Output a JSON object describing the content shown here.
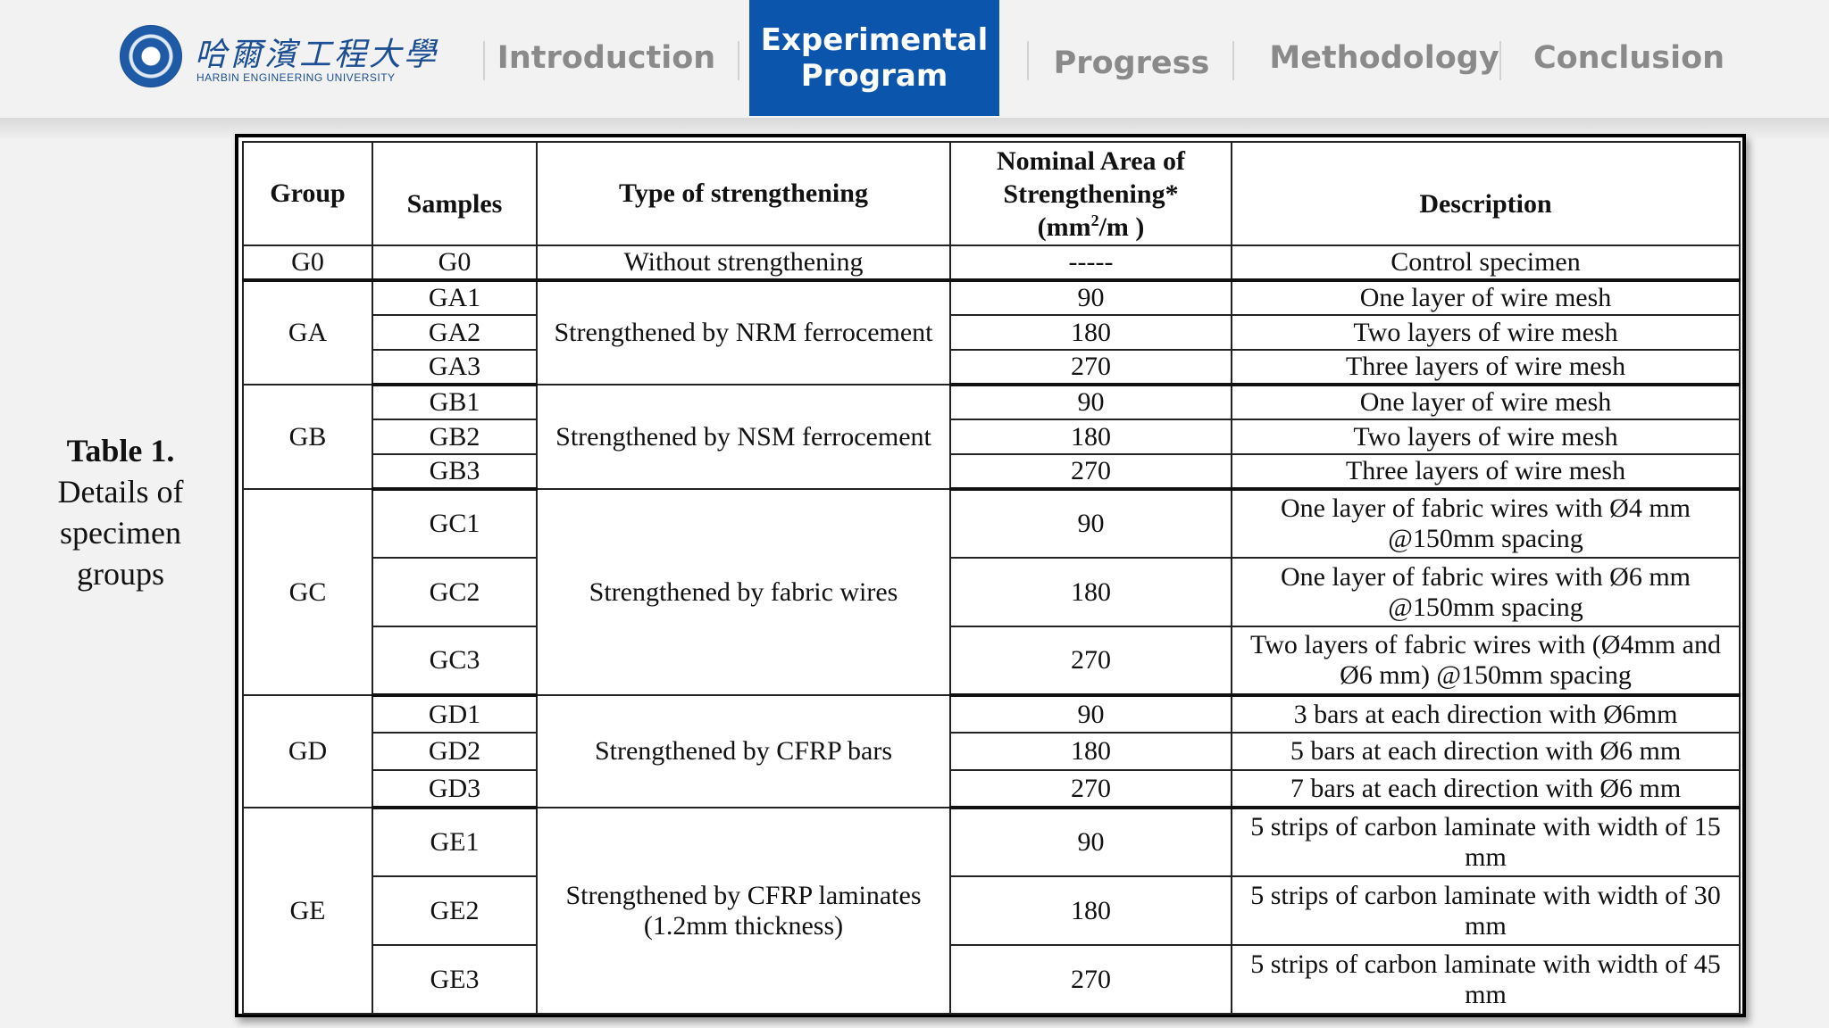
{
  "logo": {
    "cn_name": "哈爾濱工程大學",
    "en_name": "HARBIN ENGINEERING UNIVERSITY"
  },
  "nav": {
    "items": [
      {
        "label": "Introduction"
      },
      {
        "label": "Experimental Program"
      },
      {
        "label": "Progress"
      },
      {
        "label": "Methodology"
      },
      {
        "label": "Conclusion"
      }
    ],
    "active_index": 1,
    "active_color": "#0b55ad"
  },
  "caption": {
    "title": "Table 1.",
    "text": "Details of specimen groups"
  },
  "table": {
    "headers": {
      "group": "Group",
      "samples": "Samples",
      "type": "Type of strengthening",
      "area_line1": "Nominal Area of",
      "area_line2": "Strengthening*",
      "area_unit_pre": "(mm",
      "area_unit_sup": "2",
      "area_unit_post": "/m )",
      "description": "Description"
    },
    "groups": [
      {
        "group": "G0",
        "type": "Without strengthening",
        "rows": [
          {
            "sample": "G0",
            "area": "-----",
            "description": "Control specimen"
          }
        ]
      },
      {
        "group": "GA",
        "type": "Strengthened by NRM ferrocement",
        "rows": [
          {
            "sample": "GA1",
            "area": "90",
            "description": "One layer of wire mesh"
          },
          {
            "sample": "GA2",
            "area": "180",
            "description": "Two layers of wire mesh"
          },
          {
            "sample": "GA3",
            "area": "270",
            "description": "Three layers of wire mesh"
          }
        ]
      },
      {
        "group": "GB",
        "type": "Strengthened by NSM ferrocement",
        "rows": [
          {
            "sample": "GB1",
            "area": "90",
            "description": "One layer of wire mesh"
          },
          {
            "sample": "GB2",
            "area": "180",
            "description": "Two layers of wire mesh"
          },
          {
            "sample": "GB3",
            "area": "270",
            "description": "Three layers of wire mesh"
          }
        ]
      },
      {
        "group": "GC",
        "type": "Strengthened by fabric wires",
        "rows": [
          {
            "sample": "GC1",
            "area": "90",
            "description": "One layer of fabric wires with Ø4 mm @150mm spacing"
          },
          {
            "sample": "GC2",
            "area": "180",
            "description": "One layer of fabric wires with Ø6 mm @150mm spacing"
          },
          {
            "sample": "GC3",
            "area": "270",
            "description": "Two layers of fabric wires with (Ø4mm and Ø6 mm) @150mm spacing"
          }
        ]
      },
      {
        "group": "GD",
        "type": "Strengthened by CFRP bars",
        "rows": [
          {
            "sample": "GD1",
            "area": "90",
            "description": "3 bars at each direction with Ø6mm"
          },
          {
            "sample": "GD2",
            "area": "180",
            "description": "5 bars at each direction with Ø6 mm"
          },
          {
            "sample": "GD3",
            "area": "270",
            "description": "7 bars at each direction with Ø6 mm"
          }
        ]
      },
      {
        "group": "GE",
        "type": "Strengthened by CFRP laminates (1.2mm thickness)",
        "rows": [
          {
            "sample": "GE1",
            "area": "90",
            "description": "5 strips of carbon laminate with width of 15 mm"
          },
          {
            "sample": "GE2",
            "area": "180",
            "description": "5 strips of carbon laminate with width of 30 mm"
          },
          {
            "sample": "GE3",
            "area": "270",
            "description": "5 strips of carbon laminate with width of 45 mm"
          }
        ]
      }
    ]
  }
}
